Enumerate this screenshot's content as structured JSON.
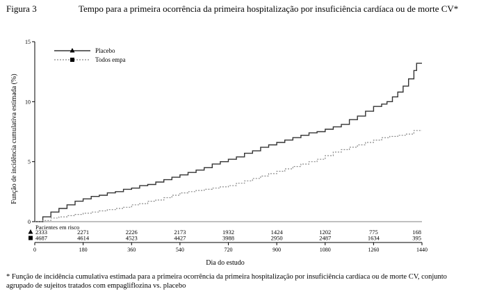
{
  "figure": {
    "label": "Figura 3",
    "title": "Tempo para a primeira ocorrência da primeira hospitalização por insuficiência cardíaca ou de morte CV*"
  },
  "footnote": "* Função de incidência cumulativa estimada para a primeira ocorrência da primeira hospitalização por insuficiência cardíaca ou de morte CV, conjunto agrupado de sujeitos tratados com empagliflozina vs. placebo",
  "chart_data": {
    "type": "line",
    "title": "Tempo para a primeira ocorrência da primeira hospitalização por insuficiência cardíaca ou de morte CV*",
    "xlabel": "Dia do estudo",
    "ylabel": "Função de incidência cumulativa estimada (%)",
    "xlim": [
      0,
      1440
    ],
    "ylim": [
      0,
      15
    ],
    "x_ticks": [
      0,
      180,
      360,
      540,
      720,
      900,
      1080,
      1260,
      1440
    ],
    "y_ticks": [
      0,
      5,
      10,
      15
    ],
    "legend_position": "top-left",
    "series": [
      {
        "name": "Placebo",
        "style": "solid",
        "marker": "triangle",
        "color": "#333333",
        "x": [
          0,
          30,
          60,
          90,
          120,
          150,
          180,
          210,
          240,
          270,
          300,
          330,
          360,
          390,
          420,
          450,
          480,
          510,
          540,
          570,
          600,
          630,
          660,
          690,
          720,
          750,
          780,
          810,
          840,
          870,
          900,
          930,
          960,
          990,
          1020,
          1050,
          1080,
          1110,
          1140,
          1170,
          1200,
          1230,
          1260,
          1290,
          1310,
          1330,
          1350,
          1370,
          1390,
          1410,
          1420,
          1440
        ],
        "values": [
          0,
          0.4,
          0.8,
          1.1,
          1.4,
          1.7,
          1.9,
          2.1,
          2.2,
          2.4,
          2.5,
          2.7,
          2.8,
          3.0,
          3.1,
          3.3,
          3.5,
          3.7,
          3.9,
          4.1,
          4.3,
          4.5,
          4.8,
          5.0,
          5.2,
          5.4,
          5.7,
          5.9,
          6.2,
          6.4,
          6.6,
          6.8,
          7.0,
          7.2,
          7.4,
          7.5,
          7.7,
          7.9,
          8.1,
          8.5,
          8.8,
          9.2,
          9.6,
          9.8,
          10.0,
          10.4,
          10.8,
          11.3,
          11.9,
          12.6,
          13.2,
          13.2
        ]
      },
      {
        "name": "Todos empa",
        "style": "dotted",
        "marker": "square",
        "color": "#888888",
        "x": [
          0,
          30,
          60,
          90,
          120,
          150,
          180,
          210,
          240,
          270,
          300,
          330,
          360,
          390,
          420,
          450,
          480,
          510,
          540,
          570,
          600,
          630,
          660,
          690,
          720,
          750,
          780,
          810,
          840,
          870,
          900,
          930,
          960,
          990,
          1020,
          1050,
          1080,
          1110,
          1140,
          1170,
          1200,
          1230,
          1260,
          1290,
          1320,
          1350,
          1380,
          1410,
          1440
        ],
        "values": [
          0,
          0.1,
          0.3,
          0.4,
          0.5,
          0.6,
          0.7,
          0.8,
          0.9,
          1.0,
          1.1,
          1.2,
          1.4,
          1.5,
          1.7,
          1.8,
          2.0,
          2.2,
          2.4,
          2.5,
          2.6,
          2.7,
          2.8,
          2.9,
          3.0,
          3.2,
          3.4,
          3.6,
          3.8,
          4.0,
          4.2,
          4.4,
          4.6,
          4.8,
          5.0,
          5.2,
          5.5,
          5.8,
          6.0,
          6.2,
          6.4,
          6.6,
          6.8,
          7.0,
          7.1,
          7.2,
          7.3,
          7.6,
          7.6
        ]
      }
    ],
    "risk_table": {
      "title": "Pacientes em risco",
      "days": [
        0,
        180,
        360,
        540,
        720,
        900,
        1080,
        1260,
        1440
      ],
      "rows": [
        {
          "name": "Placebo",
          "marker": "triangle",
          "values": [
            "2333",
            "2271",
            "2226",
            "2173",
            "1932",
            "1424",
            "1202",
            "775",
            "168"
          ]
        },
        {
          "name": "Todos empa",
          "marker": "square",
          "values": [
            "4687",
            "4614",
            "4523",
            "4427",
            "3988",
            "2950",
            "2487",
            "1634",
            "395"
          ]
        }
      ]
    }
  }
}
